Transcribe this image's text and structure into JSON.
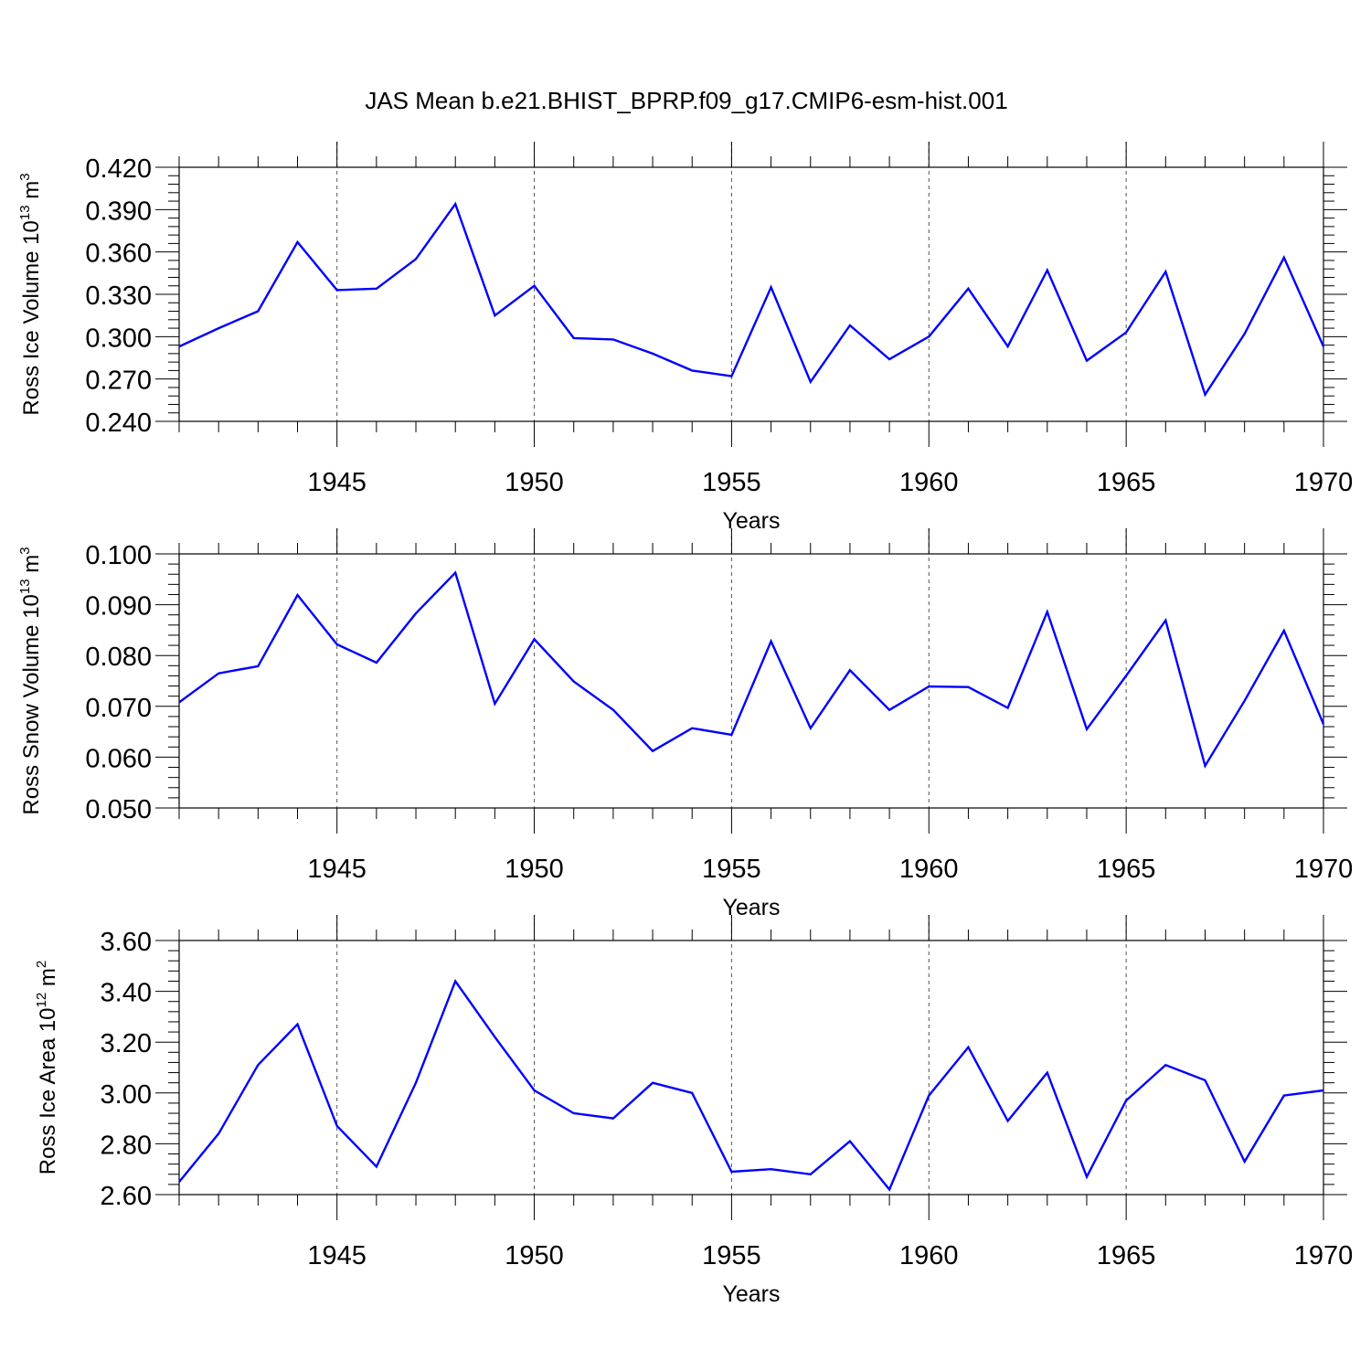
{
  "figure": {
    "title": "JAS Mean b.e21.BHIST_BPRP.f09_g17.CMIP6-esm-hist.001"
  },
  "colors": {
    "series": "#0000ff",
    "axis": "#000000",
    "grid": "#555555"
  },
  "chart_data": [
    {
      "type": "line",
      "ylabel": {
        "prefix": "Ross Ice Volume 10",
        "exp1": "13",
        "mid": " m",
        "exp2": "3"
      },
      "xlabel": "Years",
      "xlim": [
        1941,
        1970
      ],
      "ylim": [
        0.24,
        0.42
      ],
      "yticks": [
        "0.240",
        "0.270",
        "0.300",
        "0.330",
        "0.360",
        "0.390",
        "0.420"
      ],
      "xticks": [
        "1945",
        "1950",
        "1955",
        "1960",
        "1965",
        "1970"
      ],
      "grid": "vertical dashed at major x ticks",
      "x": [
        1941,
        1942,
        1943,
        1944,
        1945,
        1946,
        1947,
        1948,
        1949,
        1950,
        1951,
        1952,
        1953,
        1954,
        1955,
        1956,
        1957,
        1958,
        1959,
        1960,
        1961,
        1962,
        1963,
        1964,
        1965,
        1966,
        1967,
        1968,
        1969,
        1970
      ],
      "values": [
        0.293,
        0.306,
        0.318,
        0.367,
        0.333,
        0.334,
        0.355,
        0.394,
        0.315,
        0.336,
        0.299,
        0.298,
        0.288,
        0.276,
        0.272,
        0.335,
        0.268,
        0.308,
        0.284,
        0.3,
        0.334,
        0.293,
        0.347,
        0.283,
        0.303,
        0.346,
        0.259,
        0.302,
        0.356,
        0.293
      ]
    },
    {
      "type": "line",
      "ylabel": {
        "prefix": "Ross Snow Volume 10",
        "exp1": "13",
        "mid": " m",
        "exp2": "3"
      },
      "xlabel": "Years",
      "xlim": [
        1941,
        1970
      ],
      "ylim": [
        0.05,
        0.1
      ],
      "yticks": [
        "0.050",
        "0.060",
        "0.070",
        "0.080",
        "0.090",
        "0.100"
      ],
      "xticks": [
        "1945",
        "1950",
        "1955",
        "1960",
        "1965",
        "1970"
      ],
      "grid": "vertical dashed at major x ticks",
      "x": [
        1941,
        1942,
        1943,
        1944,
        1945,
        1946,
        1947,
        1948,
        1949,
        1950,
        1951,
        1952,
        1953,
        1954,
        1955,
        1956,
        1957,
        1958,
        1959,
        1960,
        1961,
        1962,
        1963,
        1964,
        1965,
        1966,
        1967,
        1968,
        1969,
        1970
      ],
      "values": [
        0.0708,
        0.0765,
        0.0779,
        0.0919,
        0.0822,
        0.0786,
        0.0883,
        0.0963,
        0.0705,
        0.0832,
        0.0749,
        0.0693,
        0.0612,
        0.0657,
        0.0644,
        0.0828,
        0.0657,
        0.0771,
        0.0693,
        0.0739,
        0.0738,
        0.0697,
        0.0886,
        0.0655,
        0.076,
        0.0869,
        0.0583,
        0.0711,
        0.0849,
        0.0665
      ]
    },
    {
      "type": "line",
      "ylabel": {
        "prefix": "Ross Ice Area 10",
        "exp1": "12",
        "mid": " m",
        "exp2": "2"
      },
      "xlabel": "Years",
      "xlim": [
        1941,
        1970
      ],
      "ylim": [
        2.6,
        3.6
      ],
      "yticks": [
        "2.60",
        "2.80",
        "3.00",
        "3.20",
        "3.40",
        "3.60"
      ],
      "xticks": [
        "1945",
        "1950",
        "1955",
        "1960",
        "1965",
        "1970"
      ],
      "grid": "vertical dashed at major x ticks",
      "x": [
        1941,
        1942,
        1943,
        1944,
        1945,
        1946,
        1947,
        1948,
        1949,
        1950,
        1951,
        1952,
        1953,
        1954,
        1955,
        1956,
        1957,
        1958,
        1959,
        1960,
        1961,
        1962,
        1963,
        1964,
        1965,
        1966,
        1967,
        1968,
        1969,
        1970
      ],
      "values": [
        2.65,
        2.84,
        3.11,
        3.27,
        2.87,
        2.71,
        3.04,
        3.44,
        3.22,
        3.01,
        2.92,
        2.9,
        3.04,
        3.0,
        2.69,
        2.7,
        2.68,
        2.81,
        2.62,
        2.99,
        3.18,
        2.89,
        3.08,
        2.67,
        2.97,
        3.11,
        3.05,
        2.73,
        2.99,
        3.01
      ]
    }
  ]
}
